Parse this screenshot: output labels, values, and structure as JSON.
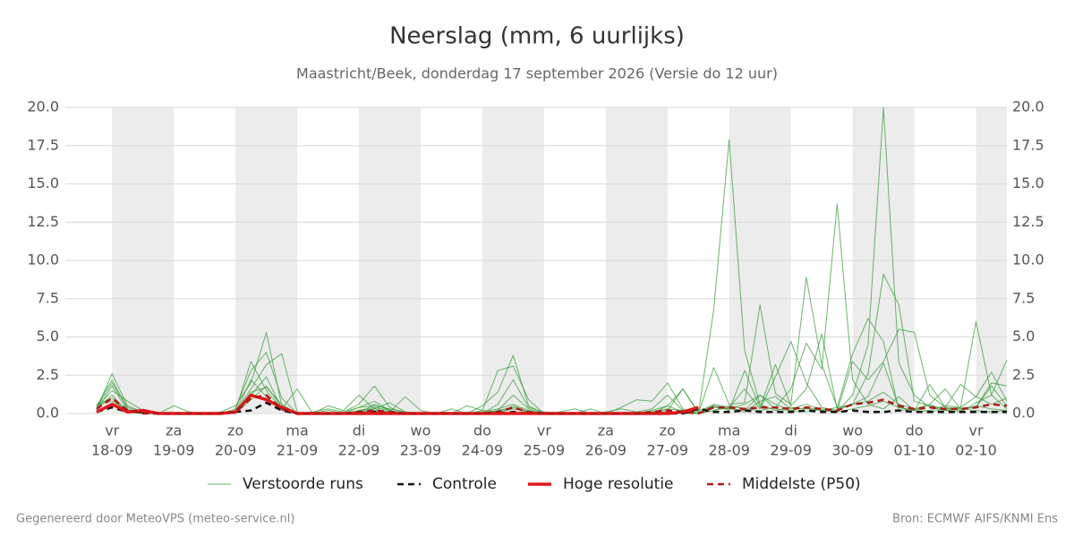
{
  "chart_data": {
    "type": "line",
    "title": "Neerslag (mm, 6 uurlijks)",
    "subtitle": "Maastricht/Beek, donderdag 17 september 2026 (Versie do 12 uur)",
    "categories": [
      null,
      "18-09",
      null,
      null,
      null,
      "19-09",
      null,
      null,
      null,
      "20-09",
      null,
      null,
      null,
      "21-09",
      null,
      null,
      null,
      "22-09",
      null,
      null,
      null,
      "23-09",
      null,
      null,
      null,
      "24-09",
      null,
      null,
      null,
      "25-09",
      null,
      null,
      null,
      "26-09",
      null,
      null,
      null,
      "27-09",
      null,
      null,
      null,
      "28-09",
      null,
      null,
      null,
      "29-09",
      null,
      null,
      null,
      "30-09",
      null,
      null,
      null,
      "01-10",
      null,
      null,
      null,
      "02-10",
      null,
      null
    ],
    "weekdays": [
      null,
      "vr",
      null,
      null,
      null,
      "za",
      null,
      null,
      null,
      "zo",
      null,
      null,
      null,
      "ma",
      null,
      null,
      null,
      "di",
      null,
      null,
      null,
      "wo",
      null,
      null,
      null,
      "do",
      null,
      null,
      null,
      "vr",
      null,
      null,
      null,
      "za",
      null,
      null,
      null,
      "zo",
      null,
      null,
      null,
      "ma",
      null,
      null,
      null,
      "di",
      null,
      null,
      null,
      "wo",
      null,
      null,
      null,
      "do",
      null,
      null,
      null,
      "vr",
      null,
      null
    ],
    "ylim": [
      0,
      20
    ],
    "yticks": [
      {
        "value": 0,
        "label": "0.0"
      },
      {
        "value": 2.5,
        "label": "2.5"
      },
      {
        "value": 5,
        "label": "5.0"
      },
      {
        "value": 7.5,
        "label": "7.5"
      },
      {
        "value": 10,
        "label": "10.0"
      },
      {
        "value": 12.5,
        "label": "12.5"
      },
      {
        "value": 15,
        "label": "15.0"
      },
      {
        "value": 17.5,
        "label": "17.5"
      },
      {
        "value": 20,
        "label": "20.0"
      }
    ],
    "grid": true,
    "series": [
      {
        "name": "Verstoorde runs",
        "color": "#3a9d3a",
        "style": "thin",
        "members": [
          [
            0.3,
            2.6,
            0.5,
            0.1,
            0,
            0,
            0,
            0,
            0,
            0.2,
            3.4,
            1.5,
            0.3,
            0,
            0,
            0,
            0,
            0.2,
            0.4,
            0.2,
            0,
            0,
            0,
            0,
            0,
            0.5,
            1.4,
            3.8,
            0.5,
            0,
            0,
            0,
            0,
            0,
            0,
            0.1,
            0.3,
            1.2,
            0.2,
            0,
            6.8,
            17.9,
            4.1,
            0.6,
            0.2,
            0.4,
            0.3,
            0.2,
            0.1,
            0.3,
            0.5,
            0.8,
            0.4,
            0.2,
            0.1,
            0.3,
            0.2,
            0.5,
            0.3,
            0.2
          ],
          [
            0.5,
            2.2,
            0.3,
            0,
            0,
            0,
            0,
            0,
            0.1,
            0.5,
            2.0,
            5.3,
            0.5,
            0,
            0,
            0,
            0,
            0.4,
            0.5,
            0.3,
            0.1,
            0,
            0,
            0,
            0,
            0.2,
            2.8,
            3.1,
            0.9,
            0,
            0,
            0,
            0,
            0,
            0,
            0,
            0.2,
            0.5,
            1.6,
            0.1,
            0.4,
            0.3,
            0.2,
            1.2,
            0.6,
            0.2,
            0.4,
            0.2,
            0.1,
            1.2,
            4.5,
            20.0,
            3.3,
            1.2,
            0.4,
            0.2,
            0.3,
            0.4,
            1.8,
            0.5
          ],
          [
            0.2,
            1.8,
            0.2,
            0,
            0,
            0.5,
            0.1,
            0,
            0,
            0.3,
            2.8,
            4.0,
            1.0,
            0,
            0.1,
            0.3,
            0.1,
            0.6,
            1.8,
            0.4,
            0,
            0,
            0,
            0,
            0,
            0,
            0.2,
            0.4,
            0.1,
            0,
            0,
            0,
            0.3,
            0,
            0,
            0,
            0.1,
            0.2,
            1.6,
            0,
            0.2,
            0.5,
            0.3,
            0.2,
            0.4,
            1.6,
            4.6,
            2.9,
            13.7,
            2.2,
            0.6,
            0.3,
            1.1,
            0.2,
            1.9,
            0.4,
            0.3,
            0.2,
            0.1,
            0.2
          ],
          [
            0.4,
            1.5,
            0.8,
            0.2,
            0,
            0,
            0,
            0,
            0,
            0.1,
            1.6,
            3.2,
            3.9,
            0.1,
            0,
            0.5,
            0.2,
            1.2,
            0.3,
            0.1,
            1.1,
            0.2,
            0,
            0,
            0,
            0.1,
            0.3,
            0.6,
            0.2,
            0,
            0.1,
            0.3,
            0,
            0,
            0.4,
            0.9,
            0.8,
            2.0,
            0.3,
            0,
            3.0,
            0.6,
            0.7,
            7.1,
            1.3,
            0.6,
            8.9,
            3.2,
            0.4,
            3.9,
            6.2,
            4.7,
            0.2,
            0.3,
            0.6,
            0.2,
            0.1,
            0.7,
            1.2,
            0.3
          ],
          [
            0.6,
            1.0,
            0.1,
            0,
            0,
            0,
            0,
            0,
            0,
            0.2,
            1.2,
            2.4,
            0.3,
            1.6,
            0,
            0,
            0.1,
            0.4,
            0.8,
            0.2,
            0,
            0,
            0,
            0,
            0.5,
            0.2,
            0.1,
            0.3,
            0.1,
            0,
            0,
            0,
            0,
            0.1,
            0.3,
            0.1,
            0,
            0.5,
            0.1,
            0.2,
            0.5,
            0.2,
            2.8,
            0.4,
            3.2,
            0.5,
            1.6,
            5.2,
            0.3,
            0.6,
            2.6,
            9.1,
            7.1,
            0.8,
            0.5,
            0.3,
            0.4,
            6.0,
            1.2,
            3.5
          ],
          [
            0.4,
            2.0,
            0.4,
            0.1,
            0,
            0,
            0,
            0,
            0,
            0,
            0.9,
            1.8,
            0.4,
            0,
            0,
            0.2,
            0,
            0.2,
            0.3,
            0.7,
            0.1,
            0,
            0,
            0.3,
            0,
            0,
            0.6,
            2.2,
            0.4,
            0.1,
            0,
            0,
            0,
            0,
            0,
            0,
            0.1,
            0.3,
            0.2,
            0,
            0.6,
            0.4,
            1.6,
            0.3,
            2.4,
            4.7,
            2.0,
            0.4,
            0.2,
            3.4,
            2.2,
            3.4,
            5.5,
            5.3,
            1.2,
            0.4,
            1.9,
            1.1,
            2.7,
            0.8
          ],
          [
            0.3,
            1.2,
            0.1,
            0,
            0,
            0,
            0,
            0,
            0,
            0.1,
            2.2,
            1.1,
            0.2,
            0,
            0,
            0,
            0,
            0.1,
            0.2,
            0.1,
            0,
            0,
            0,
            0,
            0,
            0,
            0.2,
            1.2,
            0.3,
            0,
            0,
            0,
            0,
            0,
            0,
            0,
            0,
            0.1,
            0,
            0,
            0.2,
            0.4,
            0.1,
            0.8,
            1.1,
            0.3,
            0.6,
            0.2,
            0.4,
            0.6,
            1.1,
            3.3,
            0.4,
            0.2,
            0.6,
            1.6,
            0.3,
            0.4,
            2.0,
            1.8
          ],
          [
            0.5,
            0.8,
            0.2,
            0,
            0,
            0,
            0,
            0,
            0,
            0,
            1.4,
            1.7,
            0.6,
            0,
            0,
            0,
            0,
            0,
            0.6,
            0.2,
            0,
            0,
            0,
            0,
            0,
            0,
            0,
            0.5,
            0.1,
            0,
            0,
            0,
            0,
            0,
            0,
            0,
            0,
            0,
            0,
            0,
            0.5,
            0.3,
            0.6,
            1.2,
            0.3,
            0.2,
            0.1,
            0.3,
            0.2,
            0.6,
            0.8,
            1.4,
            0.6,
            0.3,
            0.2,
            0.5,
            0.4,
            1.1,
            0.6,
            1.0
          ]
        ]
      },
      {
        "name": "Controle",
        "color": "#111111",
        "style": "dashed",
        "values": [
          0.1,
          0.4,
          0.1,
          0.1,
          0,
          0,
          0,
          0,
          0,
          0.1,
          0.2,
          0.7,
          0.2,
          0,
          0,
          0,
          0,
          0,
          0.1,
          0,
          0,
          0,
          0,
          0,
          0,
          0,
          0,
          0.1,
          0,
          0,
          0,
          0,
          0,
          0,
          0,
          0,
          0,
          0,
          0,
          0.3,
          0.1,
          0.1,
          0.2,
          0.1,
          0.1,
          0.1,
          0.2,
          0.1,
          0.1,
          0.2,
          0.1,
          0.1,
          0.2,
          0.1,
          0.1,
          0.1,
          0.1,
          0.1,
          0.1,
          0.1
        ]
      },
      {
        "name": "Hoge resolutie",
        "color": "#e3161b",
        "style": "thick",
        "values": [
          0.1,
          0.6,
          0.1,
          0.2,
          0,
          0,
          0,
          0,
          0,
          0.1,
          1.2,
          0.9,
          0.4,
          0,
          0,
          0,
          0,
          0,
          0,
          0,
          0,
          0,
          0,
          0,
          0,
          0,
          0,
          0,
          0,
          0,
          0,
          0,
          0,
          0,
          0,
          0,
          0,
          0,
          0.1,
          0.4,
          null,
          null,
          null,
          null,
          null,
          null,
          null,
          null,
          null,
          null,
          null,
          null,
          null,
          null,
          null,
          null,
          null,
          null,
          null,
          null
        ]
      },
      {
        "name": "Middelste (P50)",
        "color": "#b01818",
        "style": "dashed",
        "values": [
          0.3,
          1.0,
          0.2,
          0,
          0,
          0,
          0,
          0,
          0,
          0.1,
          1.0,
          1.2,
          0.3,
          0,
          0,
          0,
          0,
          0.1,
          0.2,
          0.1,
          0,
          0,
          0,
          0,
          0,
          0,
          0.1,
          0.4,
          0.1,
          0,
          0,
          0,
          0,
          0,
          0,
          0,
          0.1,
          0.2,
          0.1,
          0,
          0.4,
          0.4,
          0.3,
          0.4,
          0.4,
          0.3,
          0.4,
          0.3,
          0.2,
          0.6,
          0.7,
          0.9,
          0.5,
          0.3,
          0.4,
          0.3,
          0.3,
          0.4,
          0.6,
          0.5
        ]
      }
    ]
  },
  "footer": {
    "left": "Gegenereerd door MeteoVPS (meteo-service.nl)",
    "right": "Bron: ECMWF AIFS/KNMI Ens"
  }
}
